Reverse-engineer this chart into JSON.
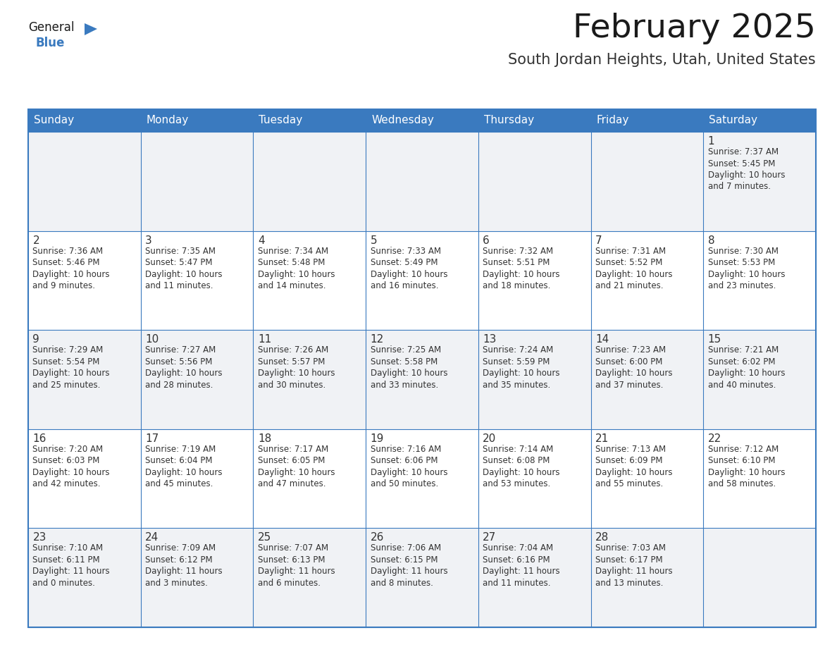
{
  "title": "February 2025",
  "subtitle": "South Jordan Heights, Utah, United States",
  "days_of_week": [
    "Sunday",
    "Monday",
    "Tuesday",
    "Wednesday",
    "Thursday",
    "Friday",
    "Saturday"
  ],
  "header_bg": "#3a7abf",
  "header_text": "#ffffff",
  "cell_bg_white": "#ffffff",
  "cell_bg_gray": "#f0f2f5",
  "border_color": "#3a7abf",
  "day_number_color": "#333333",
  "info_text_color": "#333333",
  "title_color": "#1a1a1a",
  "subtitle_color": "#333333",
  "logo_general_color": "#1a1a1a",
  "logo_blue_color": "#3a7abf",
  "header_fontsize": 11,
  "title_fontsize": 34,
  "subtitle_fontsize": 15,
  "day_number_fontsize": 11,
  "info_fontsize": 8.5,
  "calendar_data": {
    "week1": [
      {
        "day": null,
        "date": null,
        "sunrise": null,
        "sunset": null,
        "daylight": null
      },
      {
        "day": null,
        "date": null,
        "sunrise": null,
        "sunset": null,
        "daylight": null
      },
      {
        "day": null,
        "date": null,
        "sunrise": null,
        "sunset": null,
        "daylight": null
      },
      {
        "day": null,
        "date": null,
        "sunrise": null,
        "sunset": null,
        "daylight": null
      },
      {
        "day": null,
        "date": null,
        "sunrise": null,
        "sunset": null,
        "daylight": null
      },
      {
        "day": null,
        "date": null,
        "sunrise": null,
        "sunset": null,
        "daylight": null
      },
      {
        "day": 1,
        "date": "1",
        "sunrise": "7:37 AM",
        "sunset": "5:45 PM",
        "daylight": "10 hours\nand 7 minutes."
      }
    ],
    "week2": [
      {
        "day": 2,
        "date": "2",
        "sunrise": "7:36 AM",
        "sunset": "5:46 PM",
        "daylight": "10 hours\nand 9 minutes."
      },
      {
        "day": 3,
        "date": "3",
        "sunrise": "7:35 AM",
        "sunset": "5:47 PM",
        "daylight": "10 hours\nand 11 minutes."
      },
      {
        "day": 4,
        "date": "4",
        "sunrise": "7:34 AM",
        "sunset": "5:48 PM",
        "daylight": "10 hours\nand 14 minutes."
      },
      {
        "day": 5,
        "date": "5",
        "sunrise": "7:33 AM",
        "sunset": "5:49 PM",
        "daylight": "10 hours\nand 16 minutes."
      },
      {
        "day": 6,
        "date": "6",
        "sunrise": "7:32 AM",
        "sunset": "5:51 PM",
        "daylight": "10 hours\nand 18 minutes."
      },
      {
        "day": 7,
        "date": "7",
        "sunrise": "7:31 AM",
        "sunset": "5:52 PM",
        "daylight": "10 hours\nand 21 minutes."
      },
      {
        "day": 8,
        "date": "8",
        "sunrise": "7:30 AM",
        "sunset": "5:53 PM",
        "daylight": "10 hours\nand 23 minutes."
      }
    ],
    "week3": [
      {
        "day": 9,
        "date": "9",
        "sunrise": "7:29 AM",
        "sunset": "5:54 PM",
        "daylight": "10 hours\nand 25 minutes."
      },
      {
        "day": 10,
        "date": "10",
        "sunrise": "7:27 AM",
        "sunset": "5:56 PM",
        "daylight": "10 hours\nand 28 minutes."
      },
      {
        "day": 11,
        "date": "11",
        "sunrise": "7:26 AM",
        "sunset": "5:57 PM",
        "daylight": "10 hours\nand 30 minutes."
      },
      {
        "day": 12,
        "date": "12",
        "sunrise": "7:25 AM",
        "sunset": "5:58 PM",
        "daylight": "10 hours\nand 33 minutes."
      },
      {
        "day": 13,
        "date": "13",
        "sunrise": "7:24 AM",
        "sunset": "5:59 PM",
        "daylight": "10 hours\nand 35 minutes."
      },
      {
        "day": 14,
        "date": "14",
        "sunrise": "7:23 AM",
        "sunset": "6:00 PM",
        "daylight": "10 hours\nand 37 minutes."
      },
      {
        "day": 15,
        "date": "15",
        "sunrise": "7:21 AM",
        "sunset": "6:02 PM",
        "daylight": "10 hours\nand 40 minutes."
      }
    ],
    "week4": [
      {
        "day": 16,
        "date": "16",
        "sunrise": "7:20 AM",
        "sunset": "6:03 PM",
        "daylight": "10 hours\nand 42 minutes."
      },
      {
        "day": 17,
        "date": "17",
        "sunrise": "7:19 AM",
        "sunset": "6:04 PM",
        "daylight": "10 hours\nand 45 minutes."
      },
      {
        "day": 18,
        "date": "18",
        "sunrise": "7:17 AM",
        "sunset": "6:05 PM",
        "daylight": "10 hours\nand 47 minutes."
      },
      {
        "day": 19,
        "date": "19",
        "sunrise": "7:16 AM",
        "sunset": "6:06 PM",
        "daylight": "10 hours\nand 50 minutes."
      },
      {
        "day": 20,
        "date": "20",
        "sunrise": "7:14 AM",
        "sunset": "6:08 PM",
        "daylight": "10 hours\nand 53 minutes."
      },
      {
        "day": 21,
        "date": "21",
        "sunrise": "7:13 AM",
        "sunset": "6:09 PM",
        "daylight": "10 hours\nand 55 minutes."
      },
      {
        "day": 22,
        "date": "22",
        "sunrise": "7:12 AM",
        "sunset": "6:10 PM",
        "daylight": "10 hours\nand 58 minutes."
      }
    ],
    "week5": [
      {
        "day": 23,
        "date": "23",
        "sunrise": "7:10 AM",
        "sunset": "6:11 PM",
        "daylight": "11 hours\nand 0 minutes."
      },
      {
        "day": 24,
        "date": "24",
        "sunrise": "7:09 AM",
        "sunset": "6:12 PM",
        "daylight": "11 hours\nand 3 minutes."
      },
      {
        "day": 25,
        "date": "25",
        "sunrise": "7:07 AM",
        "sunset": "6:13 PM",
        "daylight": "11 hours\nand 6 minutes."
      },
      {
        "day": 26,
        "date": "26",
        "sunrise": "7:06 AM",
        "sunset": "6:15 PM",
        "daylight": "11 hours\nand 8 minutes."
      },
      {
        "day": 27,
        "date": "27",
        "sunrise": "7:04 AM",
        "sunset": "6:16 PM",
        "daylight": "11 hours\nand 11 minutes."
      },
      {
        "day": 28,
        "date": "28",
        "sunrise": "7:03 AM",
        "sunset": "6:17 PM",
        "daylight": "11 hours\nand 13 minutes."
      },
      {
        "day": null,
        "date": null,
        "sunrise": null,
        "sunset": null,
        "daylight": null
      }
    ]
  }
}
